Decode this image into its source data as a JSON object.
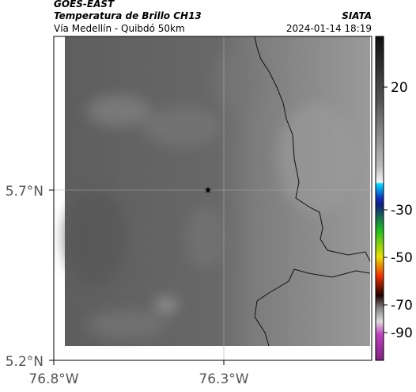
{
  "header": {
    "satellite": "GOES-EAST",
    "product": "Temperatura de Brillo CH13",
    "region": "Vía Medellín - Quibdó 50km",
    "source": "SIATA",
    "timestamp": "2024-01-14 18:19"
  },
  "axes": {
    "lat_ticks": [
      "5.7°N",
      "5.2°N"
    ],
    "lon_ticks": [
      "76.8°W",
      "76.3°W"
    ]
  },
  "colorbar": {
    "ticks": [
      20,
      -30,
      -50,
      -70,
      -90
    ]
  }
}
